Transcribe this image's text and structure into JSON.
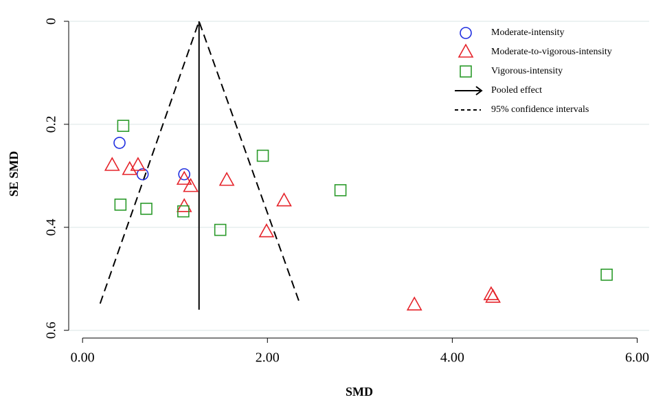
{
  "chart_data": {
    "type": "scatter",
    "x_label": "SMD",
    "y_label": "SE SMD",
    "xlim": [
      -0.15,
      6.13
    ],
    "ylim": [
      -0.02,
      0.615
    ],
    "y_inverted": true,
    "xticks": [
      {
        "value": 0,
        "label": "0.00"
      },
      {
        "value": 2,
        "label": "2.00"
      },
      {
        "value": 4,
        "label": "4.00"
      },
      {
        "value": 6,
        "label": "6.00"
      }
    ],
    "yticks": [
      0,
      0.2,
      0.4,
      0.6
    ],
    "grid": true,
    "legend": "top-right",
    "series": [
      {
        "name": "Moderate-intensity",
        "color": "#1f2ee0",
        "marker": "circle",
        "x": [
          0.4,
          0.65,
          1.1
        ],
        "values": [
          0.236,
          0.297,
          0.297
        ]
      },
      {
        "name": "Moderate-to-vigorous-intensity",
        "color": "#e52229",
        "marker": "triangle",
        "x": [
          0.32,
          0.51,
          0.6,
          1.1,
          1.17,
          1.1,
          1.56,
          2.18,
          1.99,
          3.59,
          4.42,
          4.44
        ],
        "values": [
          0.28,
          0.288,
          0.28,
          0.307,
          0.321,
          0.36,
          0.309,
          0.349,
          0.409,
          0.551,
          0.531,
          0.536
        ]
      },
      {
        "name": "Vigorous-intensity",
        "color": "#2a9a2a",
        "marker": "square",
        "x": [
          0.44,
          0.41,
          0.69,
          1.09,
          1.95,
          1.49,
          2.79,
          5.67
        ],
        "values": [
          0.203,
          0.356,
          0.364,
          0.369,
          0.261,
          0.405,
          0.328,
          0.492
        ]
      }
    ],
    "pooled_effect": {
      "name": "Pooled effect",
      "color": "#000000",
      "x": [
        1.26,
        1.26
      ],
      "values": [
        0.56,
        0
      ]
    },
    "confidence_intervals": {
      "name": "95% confidence intervals",
      "color": "#000000",
      "x": [
        0.19,
        1.26,
        2.35
      ],
      "values": [
        0.548,
        0,
        0.548
      ]
    }
  }
}
